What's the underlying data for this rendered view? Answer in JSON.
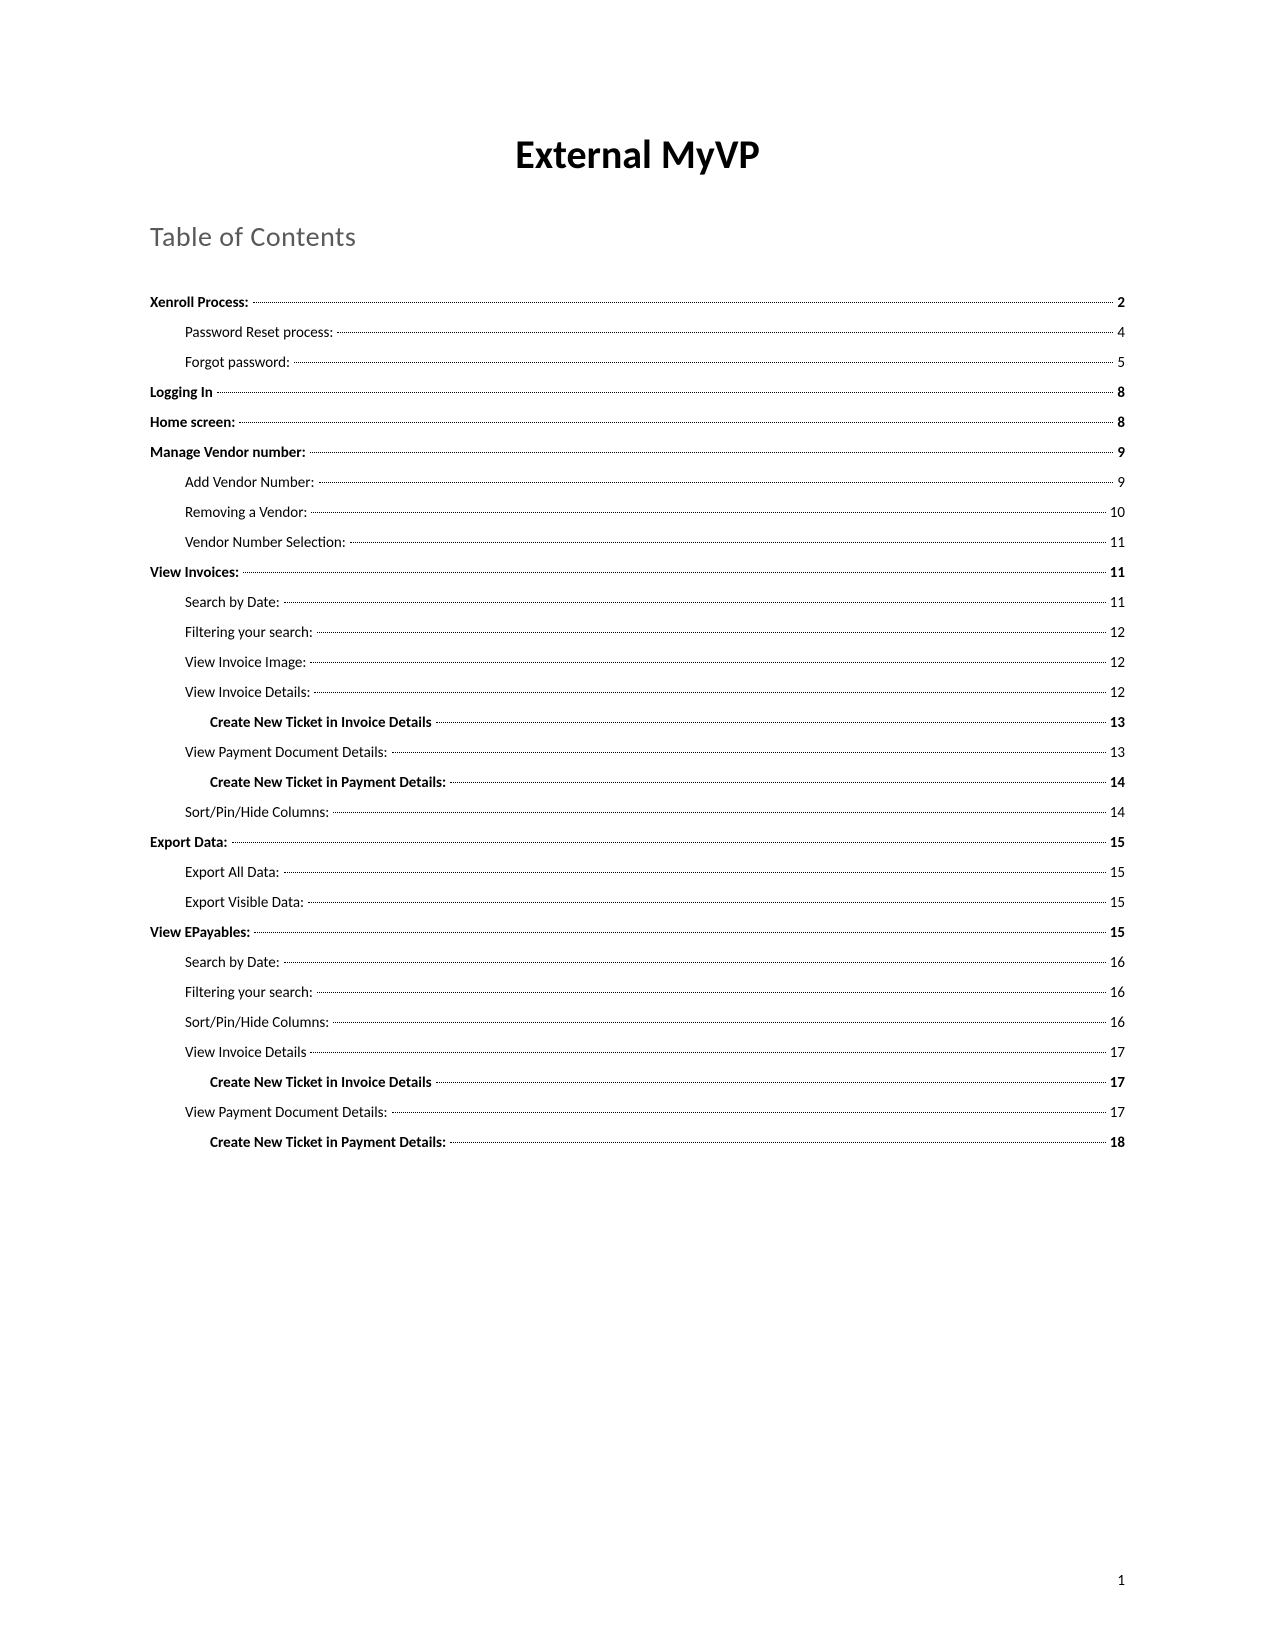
{
  "document": {
    "title": "External MyVP",
    "toc_heading": "Table of Contents",
    "page_number": "1"
  },
  "toc": [
    {
      "level": 0,
      "label": "Xenroll Process:",
      "page": "2"
    },
    {
      "level": 1,
      "label": "Password Reset process:",
      "page": "4"
    },
    {
      "level": 1,
      "label": "Forgot password:",
      "page": "5"
    },
    {
      "level": 0,
      "label": "Logging In",
      "page": "8"
    },
    {
      "level": 0,
      "label": "Home screen:",
      "page": "8"
    },
    {
      "level": 0,
      "label": "Manage Vendor number:",
      "page": "9"
    },
    {
      "level": 1,
      "label": "Add Vendor Number:",
      "page": "9"
    },
    {
      "level": 1,
      "label": "Removing a Vendor:",
      "page": "10"
    },
    {
      "level": 1,
      "label": "Vendor Number Selection:",
      "page": "11"
    },
    {
      "level": 0,
      "label": "View Invoices:",
      "page": "11"
    },
    {
      "level": 1,
      "label": "Search by Date:",
      "page": "11"
    },
    {
      "level": 1,
      "label": "Filtering your search:",
      "page": "12"
    },
    {
      "level": 1,
      "label": "View Invoice Image:",
      "page": "12"
    },
    {
      "level": 1,
      "label": "View Invoice Details:",
      "page": "12"
    },
    {
      "level": 2,
      "label": "Create New Ticket in Invoice Details",
      "page": "13"
    },
    {
      "level": 1,
      "label": "View Payment Document Details:",
      "page": "13"
    },
    {
      "level": 2,
      "label": "Create New Ticket in Payment Details:",
      "page": "14"
    },
    {
      "level": 1,
      "label": "Sort/Pin/Hide Columns:",
      "page": "14"
    },
    {
      "level": 0,
      "label": "Export Data:",
      "page": "15"
    },
    {
      "level": 1,
      "label": "Export All Data:",
      "page": "15"
    },
    {
      "level": 1,
      "label": "Export Visible Data:",
      "page": "15"
    },
    {
      "level": 0,
      "label": "View EPayables:",
      "page": "15"
    },
    {
      "level": 1,
      "label": "Search by Date:",
      "page": "16"
    },
    {
      "level": 1,
      "label": "Filtering your search:",
      "page": "16"
    },
    {
      "level": 1,
      "label": "Sort/Pin/Hide Columns:",
      "page": "16"
    },
    {
      "level": 1,
      "label": "View Invoice Details",
      "page": "17"
    },
    {
      "level": 2,
      "label": "Create New Ticket in Invoice Details",
      "page": "17"
    },
    {
      "level": 1,
      "label": "View Payment Document Details:",
      "page": "17"
    },
    {
      "level": 2,
      "label": "Create New Ticket in Payment Details:",
      "page": "18"
    }
  ]
}
